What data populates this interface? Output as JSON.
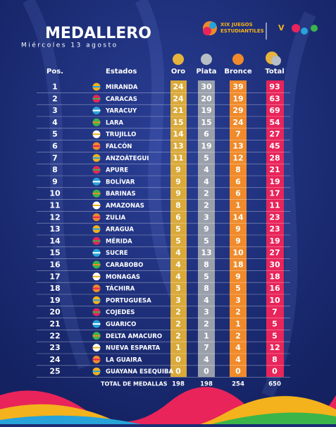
{
  "header": {
    "title": "MEDALLERO",
    "date": "Miércoles 13 agosto",
    "logo_line1": "XIX JUEGOS",
    "logo_line2": "ESTUDIANTILES"
  },
  "table": {
    "columns": [
      "Pos.",
      "Estados",
      "Oro",
      "Plata",
      "Bronce",
      "Total"
    ],
    "rows": [
      [
        1,
        "MIRANDA",
        24,
        30,
        39,
        93
      ],
      [
        2,
        "CARACAS",
        24,
        20,
        19,
        63
      ],
      [
        3,
        "YARACUY",
        21,
        19,
        29,
        69
      ],
      [
        4,
        "LARA",
        15,
        15,
        24,
        54
      ],
      [
        5,
        "TRUJILLO",
        14,
        6,
        7,
        27
      ],
      [
        6,
        "FALCÓN",
        13,
        19,
        13,
        45
      ],
      [
        7,
        "ANZOÁTEGUI",
        11,
        5,
        12,
        28
      ],
      [
        8,
        "APURE",
        9,
        4,
        8,
        21
      ],
      [
        9,
        "BOLÍVAR",
        9,
        4,
        6,
        19
      ],
      [
        10,
        "BARINAS",
        9,
        2,
        6,
        17
      ],
      [
        11,
        "AMAZONAS",
        8,
        2,
        1,
        11
      ],
      [
        12,
        "ZULIA",
        6,
        3,
        14,
        23
      ],
      [
        13,
        "ARAGUA",
        5,
        9,
        9,
        23
      ],
      [
        14,
        "MÉRIDA",
        5,
        5,
        9,
        19
      ],
      [
        15,
        "SUCRE",
        4,
        13,
        10,
        27
      ],
      [
        16,
        "CARABOBO",
        4,
        8,
        18,
        30
      ],
      [
        17,
        "MONAGAS",
        4,
        5,
        9,
        18
      ],
      [
        18,
        "TÁCHIRA",
        3,
        8,
        5,
        16
      ],
      [
        19,
        "PORTUGUESA",
        3,
        4,
        3,
        10
      ],
      [
        20,
        "COJEDES",
        2,
        3,
        2,
        7
      ],
      [
        21,
        "GUARICO",
        2,
        2,
        1,
        5
      ],
      [
        22,
        "DELTA AMACURO",
        2,
        1,
        2,
        5
      ],
      [
        23,
        "NUEVA ESPARTA",
        1,
        7,
        4,
        12
      ],
      [
        24,
        "LA GUAIRA",
        0,
        4,
        4,
        8
      ],
      [
        25,
        "GUAYANA ESEQUIBA",
        0,
        0,
        0,
        0
      ]
    ],
    "total_label": "TOTAL DE MEDALLAS",
    "totals": [
      198,
      198,
      254,
      650
    ]
  }
}
